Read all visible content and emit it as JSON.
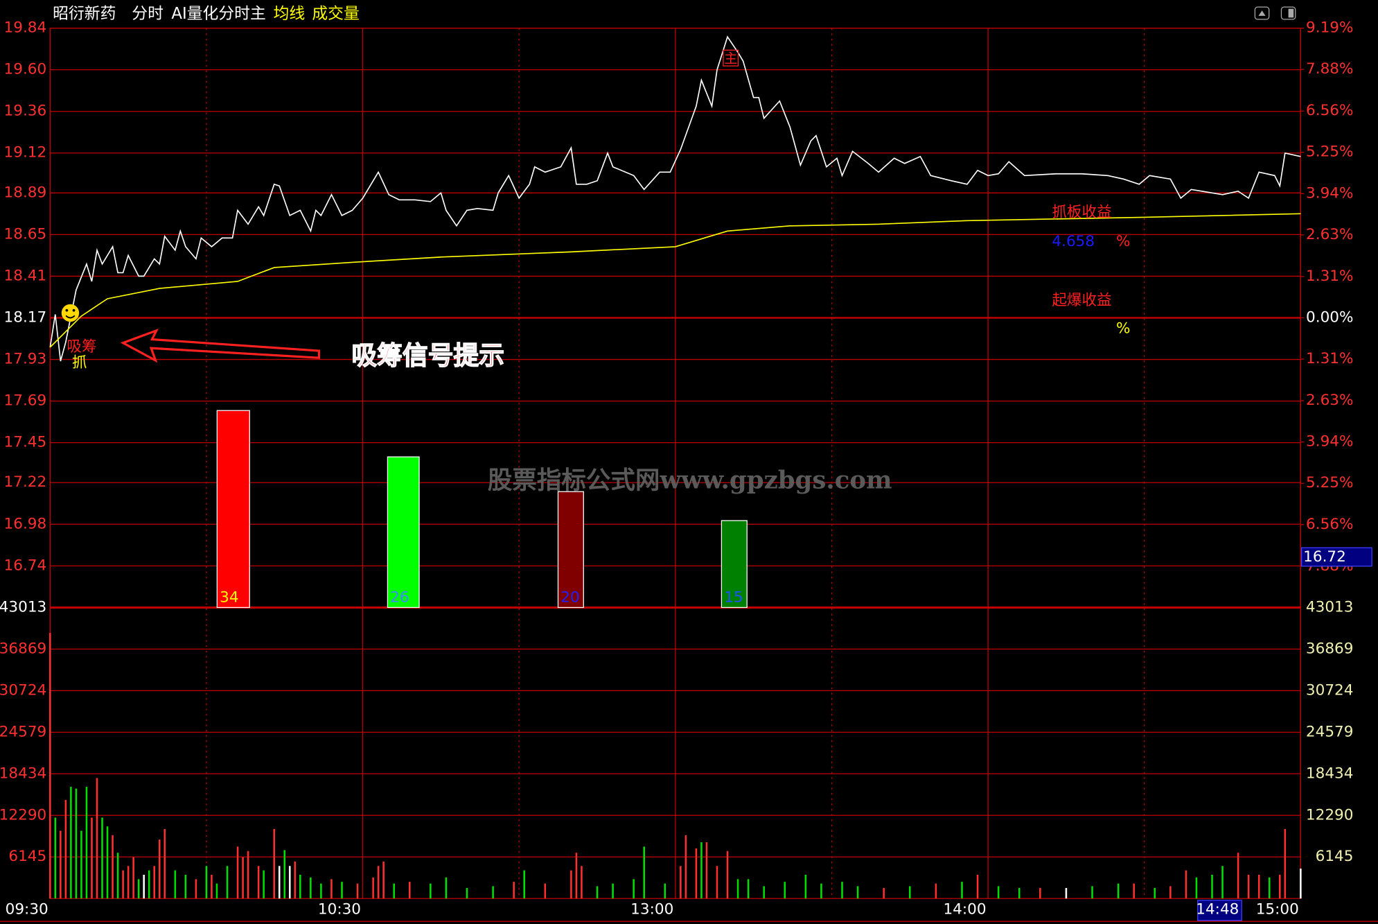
{
  "header": {
    "stock": "昭衍新药",
    "mode": "分时",
    "indicator": "AI量化分时主",
    "avg_label": "均线",
    "volume_label": "成交量"
  },
  "watermark": "股票指标公式网www.gpzbgs.com",
  "annotations": {
    "signal_hint": "吸筹信号提示",
    "accumulate": "吸筹",
    "grab": "抓",
    "main": "主",
    "board_gain_title": "抓板收益",
    "board_gain_value": 4.658,
    "board_gain_unit": "%",
    "burst_gain_title": "起爆收益",
    "burst_gain_unit": "%"
  },
  "chart_data": [
    {
      "type": "line",
      "grid": true,
      "xlim": [
        0,
        240
      ],
      "xticks": [
        {
          "value": 0,
          "label": "09:30"
        },
        {
          "value": 60,
          "label": "10:30"
        },
        {
          "value": 120,
          "label": "13:00"
        },
        {
          "value": 180,
          "label": "14:00"
        },
        {
          "value": 240,
          "label": "15:00"
        }
      ],
      "cursor_time": {
        "value": 228,
        "label": "14:48"
      },
      "cursor_price": 16.72,
      "ylim": [
        16.5,
        19.84
      ],
      "yticks": [
        19.84,
        {
          "value": 19.6,
          "label": "19.60"
        },
        19.36,
        19.12,
        18.89,
        18.65,
        18.41,
        18.17,
        17.93,
        17.69,
        17.45,
        17.22,
        16.98,
        16.74
      ],
      "y2lim": [
        -9.19,
        9.19
      ],
      "y2ticks": [
        {
          "value": 9.19,
          "label": "9.19%"
        },
        {
          "value": 7.88,
          "label": "7.88%"
        },
        {
          "value": 6.56,
          "label": "6.56%"
        },
        {
          "value": 5.25,
          "label": "5.25%"
        },
        {
          "value": 3.94,
          "label": "3.94%"
        },
        {
          "value": 2.63,
          "label": "2.63%"
        },
        {
          "value": 1.31,
          "label": "1.31%"
        },
        {
          "value": 0,
          "label": "0.00%"
        },
        {
          "value": -1.31,
          "label": "1.31%"
        },
        {
          "value": -2.63,
          "label": "2.63%"
        },
        {
          "value": -3.94,
          "label": "3.94%"
        },
        {
          "value": -5.25,
          "label": "5.25%"
        },
        {
          "value": -6.56,
          "label": "6.56%"
        },
        {
          "value": -7.88,
          "label": "7.88%"
        }
      ],
      "series": [
        {
          "color": "#ffffff",
          "x": [
            0,
            1,
            2,
            3,
            4,
            5,
            7,
            8,
            9,
            10,
            12,
            13,
            14,
            15,
            17,
            18,
            20,
            21,
            22,
            24,
            25,
            26,
            28,
            29,
            31,
            33,
            35,
            36,
            38,
            40,
            41,
            43,
            44,
            46,
            48,
            50,
            51,
            52,
            54,
            56,
            58,
            60,
            61,
            63,
            65,
            67,
            70,
            73,
            75,
            76,
            78,
            80,
            82,
            85,
            86,
            88,
            90,
            92,
            93,
            95,
            98,
            100,
            101,
            103,
            105,
            107,
            108,
            112,
            114,
            117,
            119,
            121,
            124,
            125,
            127,
            128,
            130,
            132,
            133,
            135,
            136,
            137,
            140,
            142,
            144,
            146,
            147,
            149,
            151,
            152,
            154,
            157,
            159,
            162,
            164,
            167,
            169,
            173,
            176,
            178,
            180,
            182,
            184,
            187,
            193,
            198,
            203,
            206,
            209,
            211,
            215,
            217,
            219,
            221,
            225,
            228,
            230,
            232,
            235,
            236,
            237,
            240
          ],
          "values": [
            18.0,
            18.19,
            17.92,
            18.03,
            18.18,
            18.33,
            18.48,
            18.38,
            18.56,
            18.48,
            18.58,
            18.43,
            18.43,
            18.53,
            18.41,
            18.41,
            18.51,
            18.48,
            18.64,
            18.56,
            18.67,
            18.58,
            18.51,
            18.63,
            18.58,
            18.63,
            18.63,
            18.79,
            18.71,
            18.81,
            18.76,
            18.94,
            18.93,
            18.76,
            18.79,
            18.67,
            18.79,
            18.76,
            18.88,
            18.76,
            18.79,
            18.86,
            18.91,
            19.01,
            18.88,
            18.85,
            18.85,
            18.84,
            18.89,
            18.79,
            18.7,
            18.79,
            18.8,
            18.79,
            18.89,
            18.99,
            18.86,
            18.94,
            19.04,
            19.01,
            19.04,
            19.15,
            18.94,
            18.94,
            18.96,
            19.12,
            19.04,
            18.99,
            18.91,
            19.01,
            19.01,
            19.14,
            19.39,
            19.54,
            19.39,
            19.6,
            19.79,
            19.7,
            19.65,
            19.44,
            19.44,
            19.32,
            19.42,
            19.27,
            19.05,
            19.19,
            19.22,
            19.04,
            19.09,
            18.99,
            19.13,
            19.06,
            19.01,
            19.09,
            19.06,
            19.1,
            18.99,
            18.96,
            18.94,
            19.02,
            18.99,
            19.0,
            19.07,
            18.99,
            19.0,
            19.0,
            18.99,
            18.97,
            18.94,
            18.99,
            18.97,
            18.86,
            18.91,
            18.9,
            18.88,
            18.9,
            18.86,
            19.01,
            18.99,
            18.93,
            19.12,
            19.1
          ]
        },
        {
          "color": "#ffff00",
          "x": [
            0,
            6,
            11,
            21,
            36,
            43,
            58,
            75,
            100,
            120,
            130,
            142,
            159,
            176,
            210,
            240
          ],
          "values": [
            18.0,
            18.18,
            18.28,
            18.34,
            18.38,
            18.46,
            18.49,
            18.52,
            18.55,
            18.58,
            18.67,
            18.7,
            18.71,
            18.73,
            18.75,
            18.77
          ]
        }
      ]
    },
    {
      "type": "bar",
      "values": [
        34,
        26,
        20,
        15
      ],
      "colors": [
        "#ff0000",
        "#00ff00",
        "#800000",
        "#008000"
      ],
      "ylim": [
        0,
        100
      ]
    },
    {
      "type": "bar",
      "xlim": [
        0,
        240
      ],
      "ylim": [
        0,
        43013
      ],
      "yticks": [
        43013,
        36869,
        30724,
        24579,
        18434,
        12290,
        6145
      ],
      "series": [
        {
          "color": "#ff3030",
          "x": [
            0,
            2,
            3,
            8,
            9,
            12,
            14,
            15,
            16,
            20,
            21,
            22,
            28,
            31,
            36,
            37,
            38,
            40,
            43,
            47,
            54,
            59,
            62,
            63,
            64,
            69,
            89,
            95,
            100,
            101,
            102,
            121,
            122,
            124,
            126,
            128,
            130,
            160,
            170,
            178,
            190,
            208,
            215,
            218,
            228,
            230,
            232,
            236,
            237
          ],
          "values": [
            39260,
            10010,
            14560,
            11960,
            17810,
            9360,
            4160,
            4810,
            6110,
            4810,
            8710,
            10270,
            2860,
            3510,
            7670,
            6110,
            7020,
            4810,
            10270,
            5460,
            2860,
            2210,
            3120,
            4810,
            5460,
            2470,
            2470,
            2210,
            4160,
            6760,
            4810,
            4810,
            9360,
            7410,
            8320,
            4810,
            7020,
            1560,
            2210,
            3510,
            1560,
            2210,
            1820,
            4160,
            6760,
            3510,
            3510,
            3510,
            10270
          ]
        },
        {
          "color": "#00e000",
          "x": [
            1,
            4,
            5,
            6,
            7,
            10,
            11,
            13,
            17,
            19,
            24,
            26,
            30,
            32,
            34,
            41,
            45,
            48,
            50,
            52,
            56,
            66,
            73,
            76,
            80,
            85,
            91,
            105,
            108,
            112,
            114,
            118,
            125,
            132,
            134,
            137,
            141,
            145,
            148,
            152,
            155,
            165,
            175,
            182,
            186,
            200,
            205,
            212,
            220,
            223,
            225,
            234
          ],
          "values": [
            11960,
            16510,
            16250,
            10010,
            16510,
            11960,
            10660,
            6760,
            2860,
            4160,
            4160,
            3510,
            4810,
            2210,
            4810,
            4160,
            7150,
            3510,
            3120,
            2210,
            2470,
            2210,
            2210,
            3120,
            1560,
            1820,
            4160,
            1820,
            2210,
            2860,
            7670,
            2210,
            8320,
            2860,
            2860,
            1820,
            2470,
            3510,
            2210,
            2470,
            1820,
            1820,
            2470,
            1820,
            1560,
            1820,
            2210,
            1560,
            3120,
            3510,
            4810,
            3120
          ]
        },
        {
          "color": "#ffffff",
          "x": [
            18,
            44,
            46,
            195,
            240
          ],
          "values": [
            3510,
            4810,
            4810,
            1560,
            4420
          ]
        }
      ]
    }
  ]
}
